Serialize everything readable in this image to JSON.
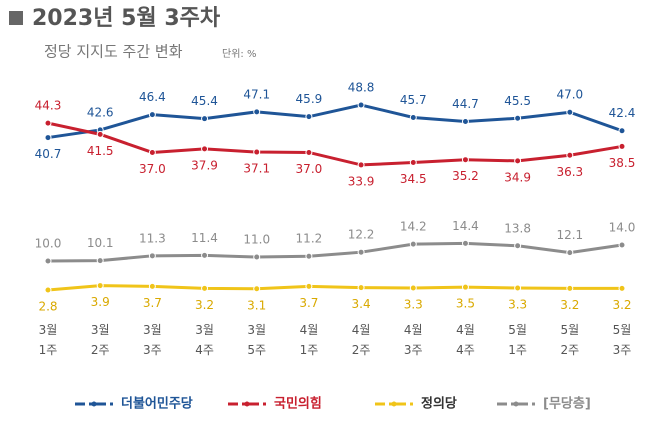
{
  "chart_data": {
    "type": "line",
    "title": "2023년 5월 3주차",
    "subtitle": "정당 지지도 주간 변화",
    "unit_note": "단위: %",
    "categories": [
      [
        "3월",
        "1주"
      ],
      [
        "3월",
        "2주"
      ],
      [
        "3월",
        "3주"
      ],
      [
        "3월",
        "4주"
      ],
      [
        "3월",
        "5주"
      ],
      [
        "4월",
        "1주"
      ],
      [
        "4월",
        "2주"
      ],
      [
        "4월",
        "3주"
      ],
      [
        "4월",
        "4주"
      ],
      [
        "5월",
        "1주"
      ],
      [
        "5월",
        "2주"
      ],
      [
        "5월",
        "3주"
      ]
    ],
    "series": [
      {
        "name": "더불어민주당",
        "color": "#1f5597",
        "values": [
          40.7,
          42.6,
          46.4,
          45.4,
          47.1,
          45.9,
          48.8,
          45.7,
          44.7,
          45.5,
          47.0,
          42.4
        ],
        "value_labels": [
          "40.7",
          "42.6",
          "46.4",
          "45.4",
          "47.1",
          "45.9",
          "48.8",
          "45.7",
          "44.7",
          "45.5",
          "47.0",
          "42.4"
        ]
      },
      {
        "name": "국민의힘",
        "color": "#c8202f",
        "values": [
          44.3,
          41.5,
          37.0,
          37.9,
          37.1,
          37.0,
          33.9,
          34.5,
          35.2,
          34.9,
          36.3,
          38.5
        ],
        "value_labels": [
          "44.3",
          "41.5",
          "37.0",
          "37.9",
          "37.1",
          "37.0",
          "33.9",
          "34.5",
          "35.2",
          "34.9",
          "36.3",
          "38.5"
        ]
      },
      {
        "name": "정의당",
        "color": "#f0c419",
        "values": [
          2.8,
          3.9,
          3.7,
          3.2,
          3.1,
          3.7,
          3.4,
          3.3,
          3.5,
          3.3,
          3.2,
          3.2
        ],
        "value_labels": [
          "2.8",
          "3.9",
          "3.7",
          "3.2",
          "3.1",
          "3.7",
          "3.4",
          "3.3",
          "3.5",
          "3.3",
          "3.2",
          "3.2"
        ]
      },
      {
        "name": "[무당층]",
        "color": "#8c8c8c",
        "values": [
          10.0,
          10.1,
          11.3,
          11.4,
          11.0,
          11.2,
          12.2,
          14.2,
          14.4,
          13.8,
          12.1,
          14.0
        ],
        "value_labels": [
          "10.0",
          "10.1",
          "11.3",
          "11.4",
          "11.0",
          "11.2",
          "12.2",
          "14.2",
          "14.4",
          "13.8",
          "12.1",
          "14.0"
        ]
      }
    ]
  }
}
